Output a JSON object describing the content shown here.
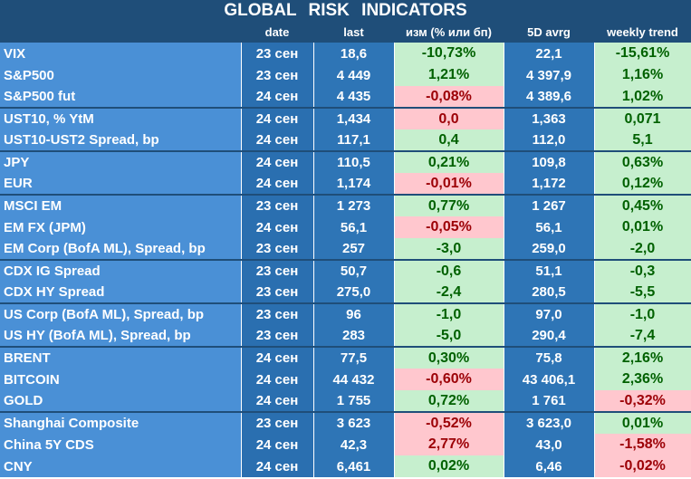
{
  "chart_data": {
    "type": "table",
    "title": "GLOBAL   RISK   INDICATORS",
    "columns": [
      "",
      "date",
      "last",
      "изм (% или бп)",
      "5D avrg",
      "weekly trend"
    ],
    "rows": [
      {
        "name": "VIX",
        "date": "23 сен",
        "last": "18,6",
        "change": "-10,73%",
        "change_dir": "pos",
        "avg5d": "22,1",
        "weekly": "-15,61%",
        "weekly_dir": "pos",
        "group_start": true
      },
      {
        "name": "S&P500",
        "date": "23 сен",
        "last": "4 449",
        "change": "1,21%",
        "change_dir": "pos",
        "avg5d": "4 397,9",
        "weekly": "1,16%",
        "weekly_dir": "pos",
        "group_start": false
      },
      {
        "name": "S&P500 fut",
        "date": "24 сен",
        "last": "4 435",
        "change": "-0,08%",
        "change_dir": "neg",
        "avg5d": "4 389,6",
        "weekly": "1,02%",
        "weekly_dir": "pos",
        "group_start": false
      },
      {
        "name": "UST10, % YtM",
        "date": "24 сен",
        "last": "1,434",
        "change": "0,0",
        "change_dir": "neg",
        "avg5d": "1,363",
        "weekly": "0,071",
        "weekly_dir": "pos",
        "group_start": true
      },
      {
        "name": "UST10-UST2 Spread, bp",
        "date": "24 сен",
        "last": "117,1",
        "change": "0,4",
        "change_dir": "pos",
        "avg5d": "112,0",
        "weekly": "5,1",
        "weekly_dir": "pos",
        "group_start": false
      },
      {
        "name": "JPY",
        "date": "24 сен",
        "last": "110,5",
        "change": "0,21%",
        "change_dir": "pos",
        "avg5d": "109,8",
        "weekly": "0,63%",
        "weekly_dir": "pos",
        "group_start": true
      },
      {
        "name": "EUR",
        "date": "24 сен",
        "last": "1,174",
        "change": "-0,01%",
        "change_dir": "neg",
        "avg5d": "1,172",
        "weekly": "0,12%",
        "weekly_dir": "pos",
        "group_start": false
      },
      {
        "name": "MSCI EM",
        "date": "23 сен",
        "last": "1 273",
        "change": "0,77%",
        "change_dir": "pos",
        "avg5d": "1 267",
        "weekly": "0,45%",
        "weekly_dir": "pos",
        "group_start": true
      },
      {
        "name": "EM FX (JPM)",
        "date": "24 сен",
        "last": "56,1",
        "change": "-0,05%",
        "change_dir": "neg",
        "avg5d": "56,1",
        "weekly": "0,01%",
        "weekly_dir": "pos",
        "group_start": false
      },
      {
        "name": "EM Corp (BofA ML), Spread, bp",
        "date": "23 сен",
        "last": "257",
        "change": "-3,0",
        "change_dir": "pos",
        "avg5d": "259,0",
        "weekly": "-2,0",
        "weekly_dir": "pos",
        "group_start": false
      },
      {
        "name": "CDX IG Spread",
        "date": "23 сен",
        "last": "50,7",
        "change": "-0,6",
        "change_dir": "pos",
        "avg5d": "51,1",
        "weekly": "-0,3",
        "weekly_dir": "pos",
        "group_start": true
      },
      {
        "name": "CDX HY Spread",
        "date": "23 сен",
        "last": "275,0",
        "change": "-2,4",
        "change_dir": "pos",
        "avg5d": "280,5",
        "weekly": "-5,5",
        "weekly_dir": "pos",
        "group_start": false
      },
      {
        "name": "US Corp (BofA ML), Spread, bp",
        "date": "23 сен",
        "last": "96",
        "change": "-1,0",
        "change_dir": "pos",
        "avg5d": "97,0",
        "weekly": "-1,0",
        "weekly_dir": "pos",
        "group_start": true
      },
      {
        "name": "US HY (BofA ML), Spread, bp",
        "date": "23 сен",
        "last": "283",
        "change": "-5,0",
        "change_dir": "pos",
        "avg5d": "290,4",
        "weekly": "-7,4",
        "weekly_dir": "pos",
        "group_start": false
      },
      {
        "name": "BRENT",
        "date": "24 сен",
        "last": "77,5",
        "change": "0,30%",
        "change_dir": "pos",
        "avg5d": "75,8",
        "weekly": "2,16%",
        "weekly_dir": "pos",
        "group_start": true
      },
      {
        "name": "BITCOIN",
        "date": "24 сен",
        "last": "44 432",
        "change": "-0,60%",
        "change_dir": "neg",
        "avg5d": "43 406,1",
        "weekly": "2,36%",
        "weekly_dir": "pos",
        "group_start": false
      },
      {
        "name": "GOLD",
        "date": "24 сен",
        "last": "1 755",
        "change": "0,72%",
        "change_dir": "pos",
        "avg5d": "1 761",
        "weekly": "-0,32%",
        "weekly_dir": "neg",
        "group_start": false
      },
      {
        "name": "Shanghai Composite",
        "date": "23 сен",
        "last": "3 623",
        "change": "-0,52%",
        "change_dir": "neg",
        "avg5d": "3 623,0",
        "weekly": "0,01%",
        "weekly_dir": "pos",
        "group_start": true
      },
      {
        "name": "China 5Y CDS",
        "date": "24 сен",
        "last": "42,3",
        "change": "2,77%",
        "change_dir": "neg",
        "avg5d": "43,0",
        "weekly": "-1,58%",
        "weekly_dir": "neg",
        "group_start": false
      },
      {
        "name": "CNY",
        "date": "24 сен",
        "last": "6,461",
        "change": "0,02%",
        "change_dir": "pos",
        "avg5d": "6,46",
        "weekly": "-0,02%",
        "weekly_dir": "neg",
        "group_start": false
      }
    ]
  }
}
